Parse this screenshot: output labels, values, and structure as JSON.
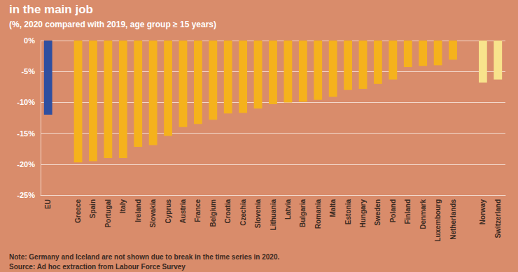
{
  "chart_data": {
    "type": "bar",
    "title": "in the main job",
    "subtitle": "(%, 2020 compared with 2019, age group ≥ 15 years)",
    "annotations": [
      "Note: Germany and Iceland are not shown due to break in the time series in 2020.",
      "Source: Ad hoc extraction from Labour Force Survey"
    ],
    "categories": [
      "EU",
      null,
      "Greece",
      "Spain",
      "Portugal",
      "Italy",
      "Ireland",
      "Slovakia",
      "Cyprus",
      "Austria",
      "France",
      "Belgium",
      "Croatia",
      "Czechia",
      "Slovenia",
      "Lithuania",
      "Latvia",
      "Bulgaria",
      "Romania",
      "Malta",
      "Estonia",
      "Hungary",
      "Sweden",
      "Poland",
      "Finland",
      "Denmark",
      "Luxembourg",
      "Netherlands",
      null,
      "Norway",
      "Switzerland"
    ],
    "values": [
      -12,
      null,
      -19.7,
      -19.5,
      -19,
      -19,
      -17.2,
      -16.9,
      -15.4,
      -14,
      -13.5,
      -12.8,
      -11.8,
      -11.7,
      -11,
      -10.3,
      -10,
      -9.9,
      -9.6,
      -9.1,
      -8,
      -7.8,
      -7,
      -6.3,
      -4.3,
      -4.1,
      -4,
      -3.1,
      null,
      -6.8,
      -6.3
    ],
    "colors": [
      "#2f4fa0",
      null,
      "#f5b21c",
      "#f5b21c",
      "#f5b21c",
      "#f5b21c",
      "#f5b21c",
      "#f5b21c",
      "#f5b21c",
      "#f5b21c",
      "#f5b21c",
      "#f5b21c",
      "#f5b21c",
      "#f5b21c",
      "#f5b21c",
      "#f5b21c",
      "#f5b21c",
      "#f5b21c",
      "#f5b21c",
      "#f5b21c",
      "#f5b21c",
      "#f5b21c",
      "#f5b21c",
      "#f5b21c",
      "#f5b21c",
      "#f5b21c",
      "#f5b21c",
      "#f5b21c",
      null,
      "#f8e38c",
      "#f8e38c"
    ],
    "ylim": [
      -25,
      0
    ],
    "yticks": [
      {
        "value": -25,
        "label": "-25%"
      },
      {
        "value": -20,
        "label": "-20%"
      },
      {
        "value": -15,
        "label": "-15%"
      },
      {
        "value": -10,
        "label": "-10%"
      },
      {
        "value": -5,
        "label": "-5%"
      },
      {
        "value": 0,
        "label": "0%"
      }
    ],
    "grid": true
  }
}
